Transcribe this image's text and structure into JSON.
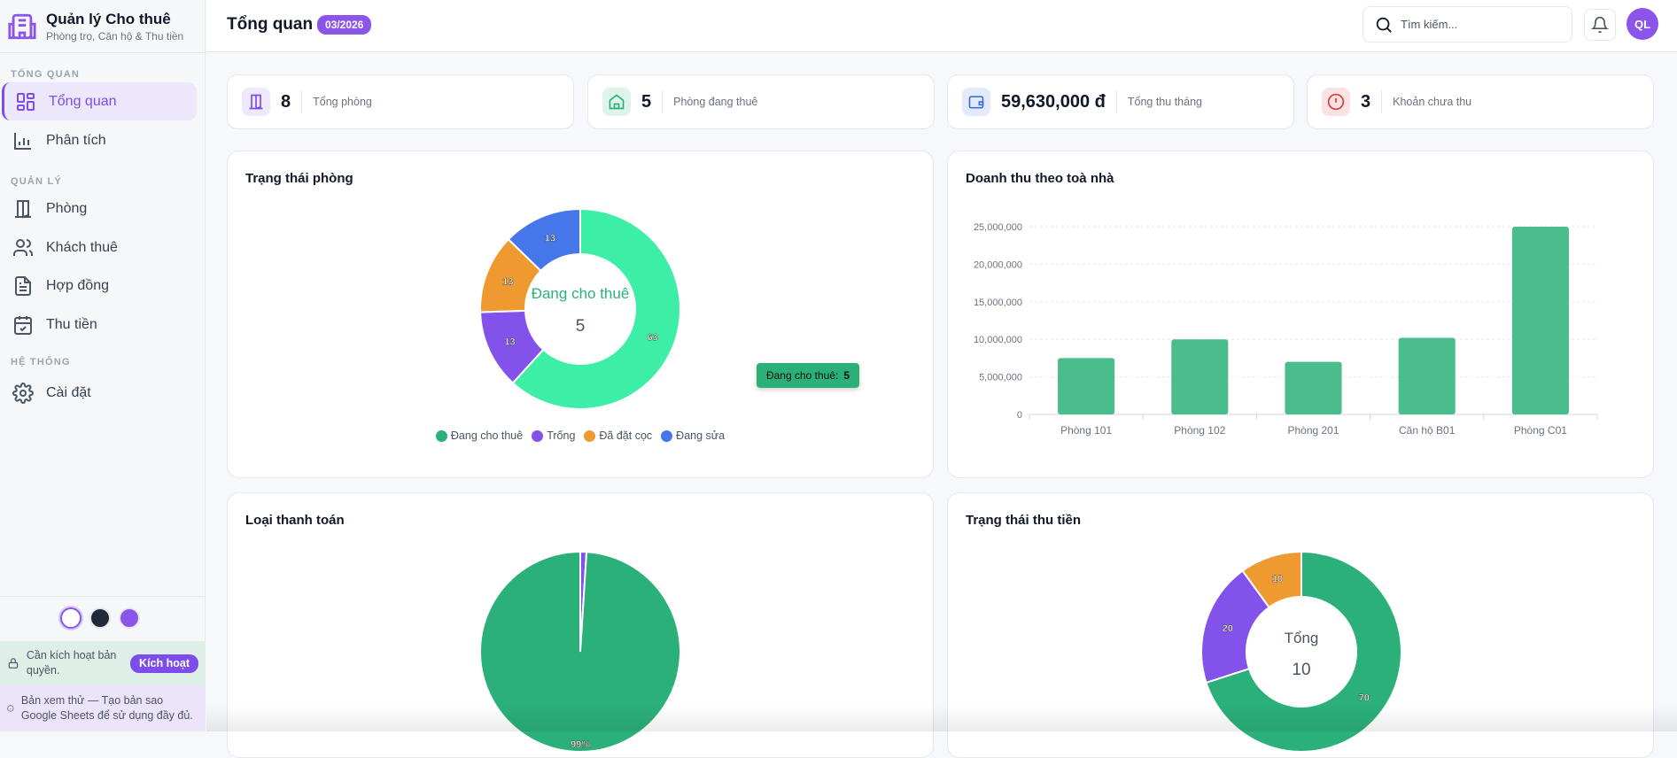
{
  "brand": {
    "title": "Quản lý Cho thuê",
    "subtitle": "Phòng trọ, Căn hộ & Thu tiền"
  },
  "sidebar": {
    "sections": [
      {
        "label": "TỔNG QUAN",
        "items": [
          {
            "label": "Tổng quan",
            "icon": "grid-icon",
            "active": true
          },
          {
            "label": "Phân tích",
            "icon": "bar-chart-icon"
          }
        ]
      },
      {
        "label": "QUẢN LÝ",
        "items": [
          {
            "label": "Phòng",
            "icon": "door-icon"
          },
          {
            "label": "Khách thuê",
            "icon": "users-icon"
          },
          {
            "label": "Hợp đồng",
            "icon": "document-icon"
          },
          {
            "label": "Thu tiền",
            "icon": "calendar-check-icon"
          }
        ]
      },
      {
        "label": "HỆ THỐNG",
        "items": [
          {
            "label": "Cài đặt",
            "icon": "gear-icon"
          }
        ]
      }
    ],
    "theme_colors": [
      "#ffffff",
      "#1f2937",
      "#8b55ea"
    ],
    "license": {
      "text": "Cần kích hoạt bản quyền.",
      "button": "Kích hoạt"
    },
    "trial": {
      "text": "Bản xem thử — Tạo bản sao Google Sheets để sử dụng đầy đủ."
    }
  },
  "header": {
    "title": "Tổng quan",
    "period": "03/2026",
    "search_placeholder": "Tìm kiếm...",
    "avatar": "QL"
  },
  "stats": [
    {
      "value": "8",
      "label": "Tổng phòng",
      "icon": "door-icon",
      "color": "#7c4dea",
      "bg": "#efe9fc"
    },
    {
      "value": "5",
      "label": "Phòng đang thuê",
      "icon": "home-icon",
      "color": "#2bb07a",
      "bg": "#dff3ea"
    },
    {
      "value": "59,630,000 đ",
      "label": "Tổng thu tháng",
      "icon": "wallet-icon",
      "color": "#3b6fe0",
      "bg": "#e3ebfb"
    },
    {
      "value": "3",
      "label": "Khoản chưa thu",
      "icon": "alert-icon",
      "color": "#e03b3b",
      "bg": "#fbe3e3"
    }
  ],
  "chart_data": [
    {
      "type": "pie",
      "title": "Trạng thái phòng",
      "donut": true,
      "center_label": "Đang cho thuê",
      "center_value": "5",
      "labels": [
        "Đang cho thuê",
        "Trống",
        "Đã đặt cọc",
        "Đang sửa"
      ],
      "values": [
        63,
        13,
        13,
        13
      ],
      "colors": [
        "#3def a6",
        "#8352ea",
        "#ee9a30",
        "#4576ea"
      ],
      "legend_colors": [
        "#2bb07a",
        "#8352ea",
        "#ee9a30",
        "#4576ea"
      ],
      "legend": "bottom",
      "tooltip": {
        "label": "Đang cho thuê:",
        "value": "5"
      }
    },
    {
      "type": "bar",
      "title": "Doanh thu theo toà nhà",
      "categories": [
        "Phòng 101",
        "Phòng 102",
        "Phòng 201",
        "Căn hộ B01",
        "Phòng C01"
      ],
      "values": [
        7500000,
        10000000,
        7000000,
        10200000,
        25000000
      ],
      "ylim": [
        0,
        25000000
      ],
      "yticks": [
        "0",
        "5,000,000",
        "10,000,000",
        "15,000,000",
        "20,000,000",
        "25,000,000"
      ],
      "grid": true,
      "color": "#4bbc8c"
    },
    {
      "type": "pie",
      "title": "Loại thanh toán",
      "values": [
        99,
        1
      ],
      "colors": [
        "#2bb07a",
        "#8352ea"
      ],
      "labels_shown": [
        "99%"
      ]
    },
    {
      "type": "pie",
      "title": "Trạng thái thu tiền",
      "donut": true,
      "center_label": "Tổng",
      "center_value": "10",
      "values": [
        70,
        20,
        10
      ],
      "colors": [
        "#2bb07a",
        "#8352ea",
        "#ee9a30"
      ]
    }
  ]
}
